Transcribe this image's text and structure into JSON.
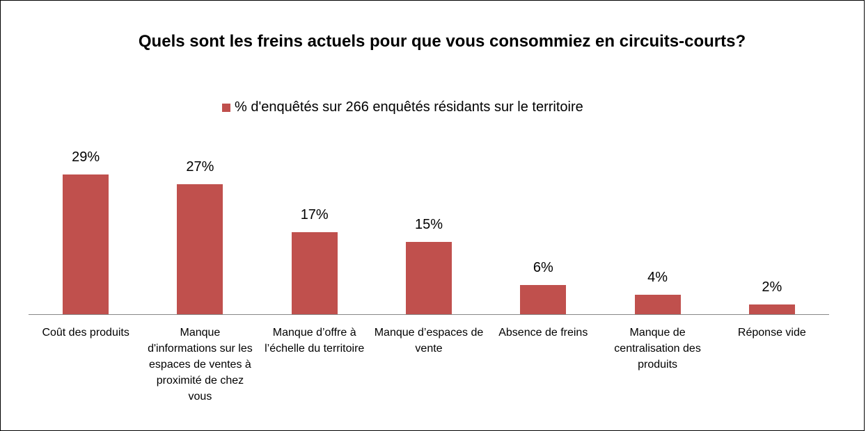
{
  "chart_data": {
    "type": "bar",
    "title": "Quels sont les freins actuels pour que vous consommiez en circuits-courts?",
    "categories": [
      "Coût des produits",
      "Manque d'informations sur les espaces de ventes à proximité de chez vous",
      "Manque d’offre à l’échelle du territoire",
      "Manque d’espaces de vente",
      "Absence de freins",
      "Manque de centralisation des produits",
      "Réponse vide"
    ],
    "series": [
      {
        "name": "% d'enquêtés sur 266 enquêtés résidants sur le territoire",
        "color": "#c0504d",
        "values": [
          29,
          27,
          17,
          15,
          6,
          4,
          2
        ],
        "value_labels": [
          "29%",
          "27%",
          "17%",
          "15%",
          "6%",
          "4%",
          "2%"
        ]
      }
    ]
  }
}
